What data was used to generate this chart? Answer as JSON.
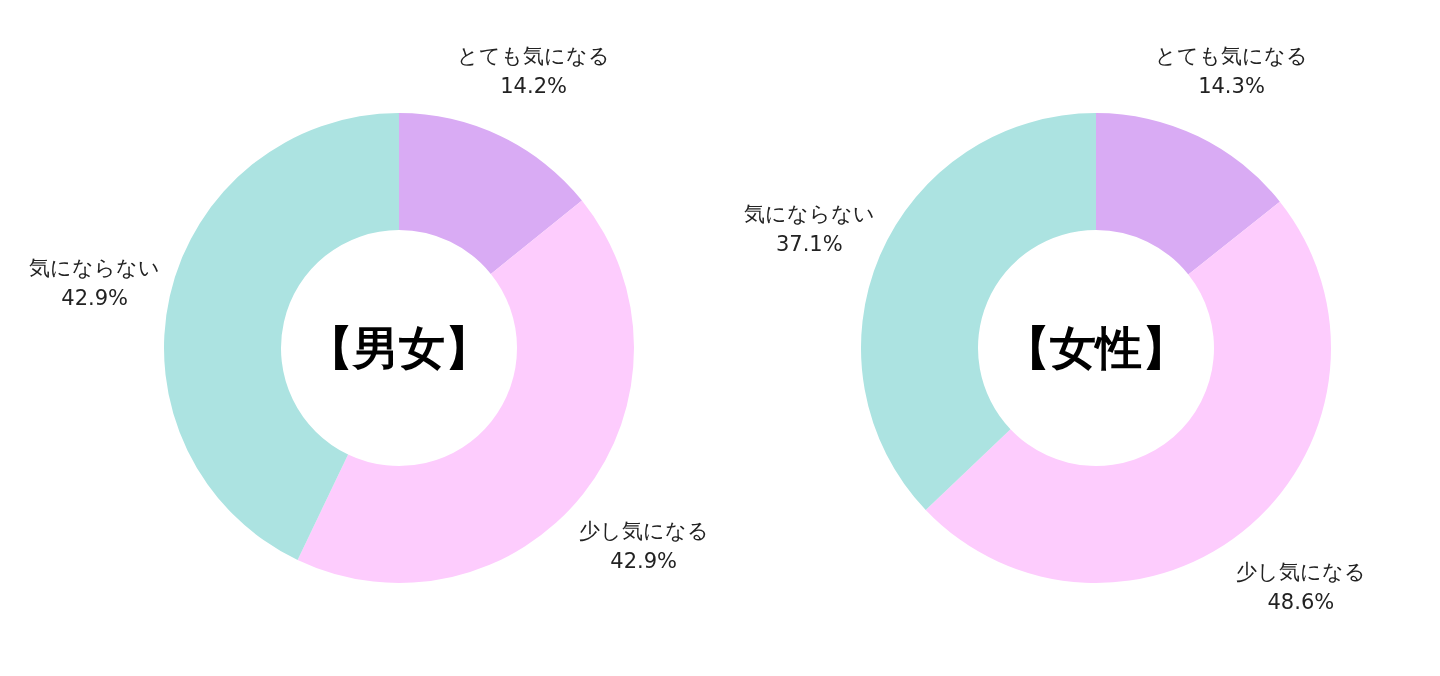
{
  "chart_data": [
    {
      "type": "donut",
      "title": "【男女】",
      "categories": [
        "とても気になる",
        "少し気になる",
        "気にならない"
      ],
      "values": [
        14.2,
        42.9,
        42.9
      ],
      "value_labels": [
        "14.2%",
        "42.9%",
        "42.9%"
      ],
      "colors": [
        "#d9abf4",
        "#fdccfd",
        "#ace3e1"
      ],
      "legend": false
    },
    {
      "type": "donut",
      "title": "【女性】",
      "categories": [
        "とても気になる",
        "少し気になる",
        "気にならない"
      ],
      "values": [
        14.3,
        48.6,
        37.1
      ],
      "value_labels": [
        "14.3%",
        "48.6%",
        "37.1%"
      ],
      "colors": [
        "#d9abf4",
        "#fdccfd",
        "#ace3e1"
      ],
      "legend": false
    }
  ]
}
